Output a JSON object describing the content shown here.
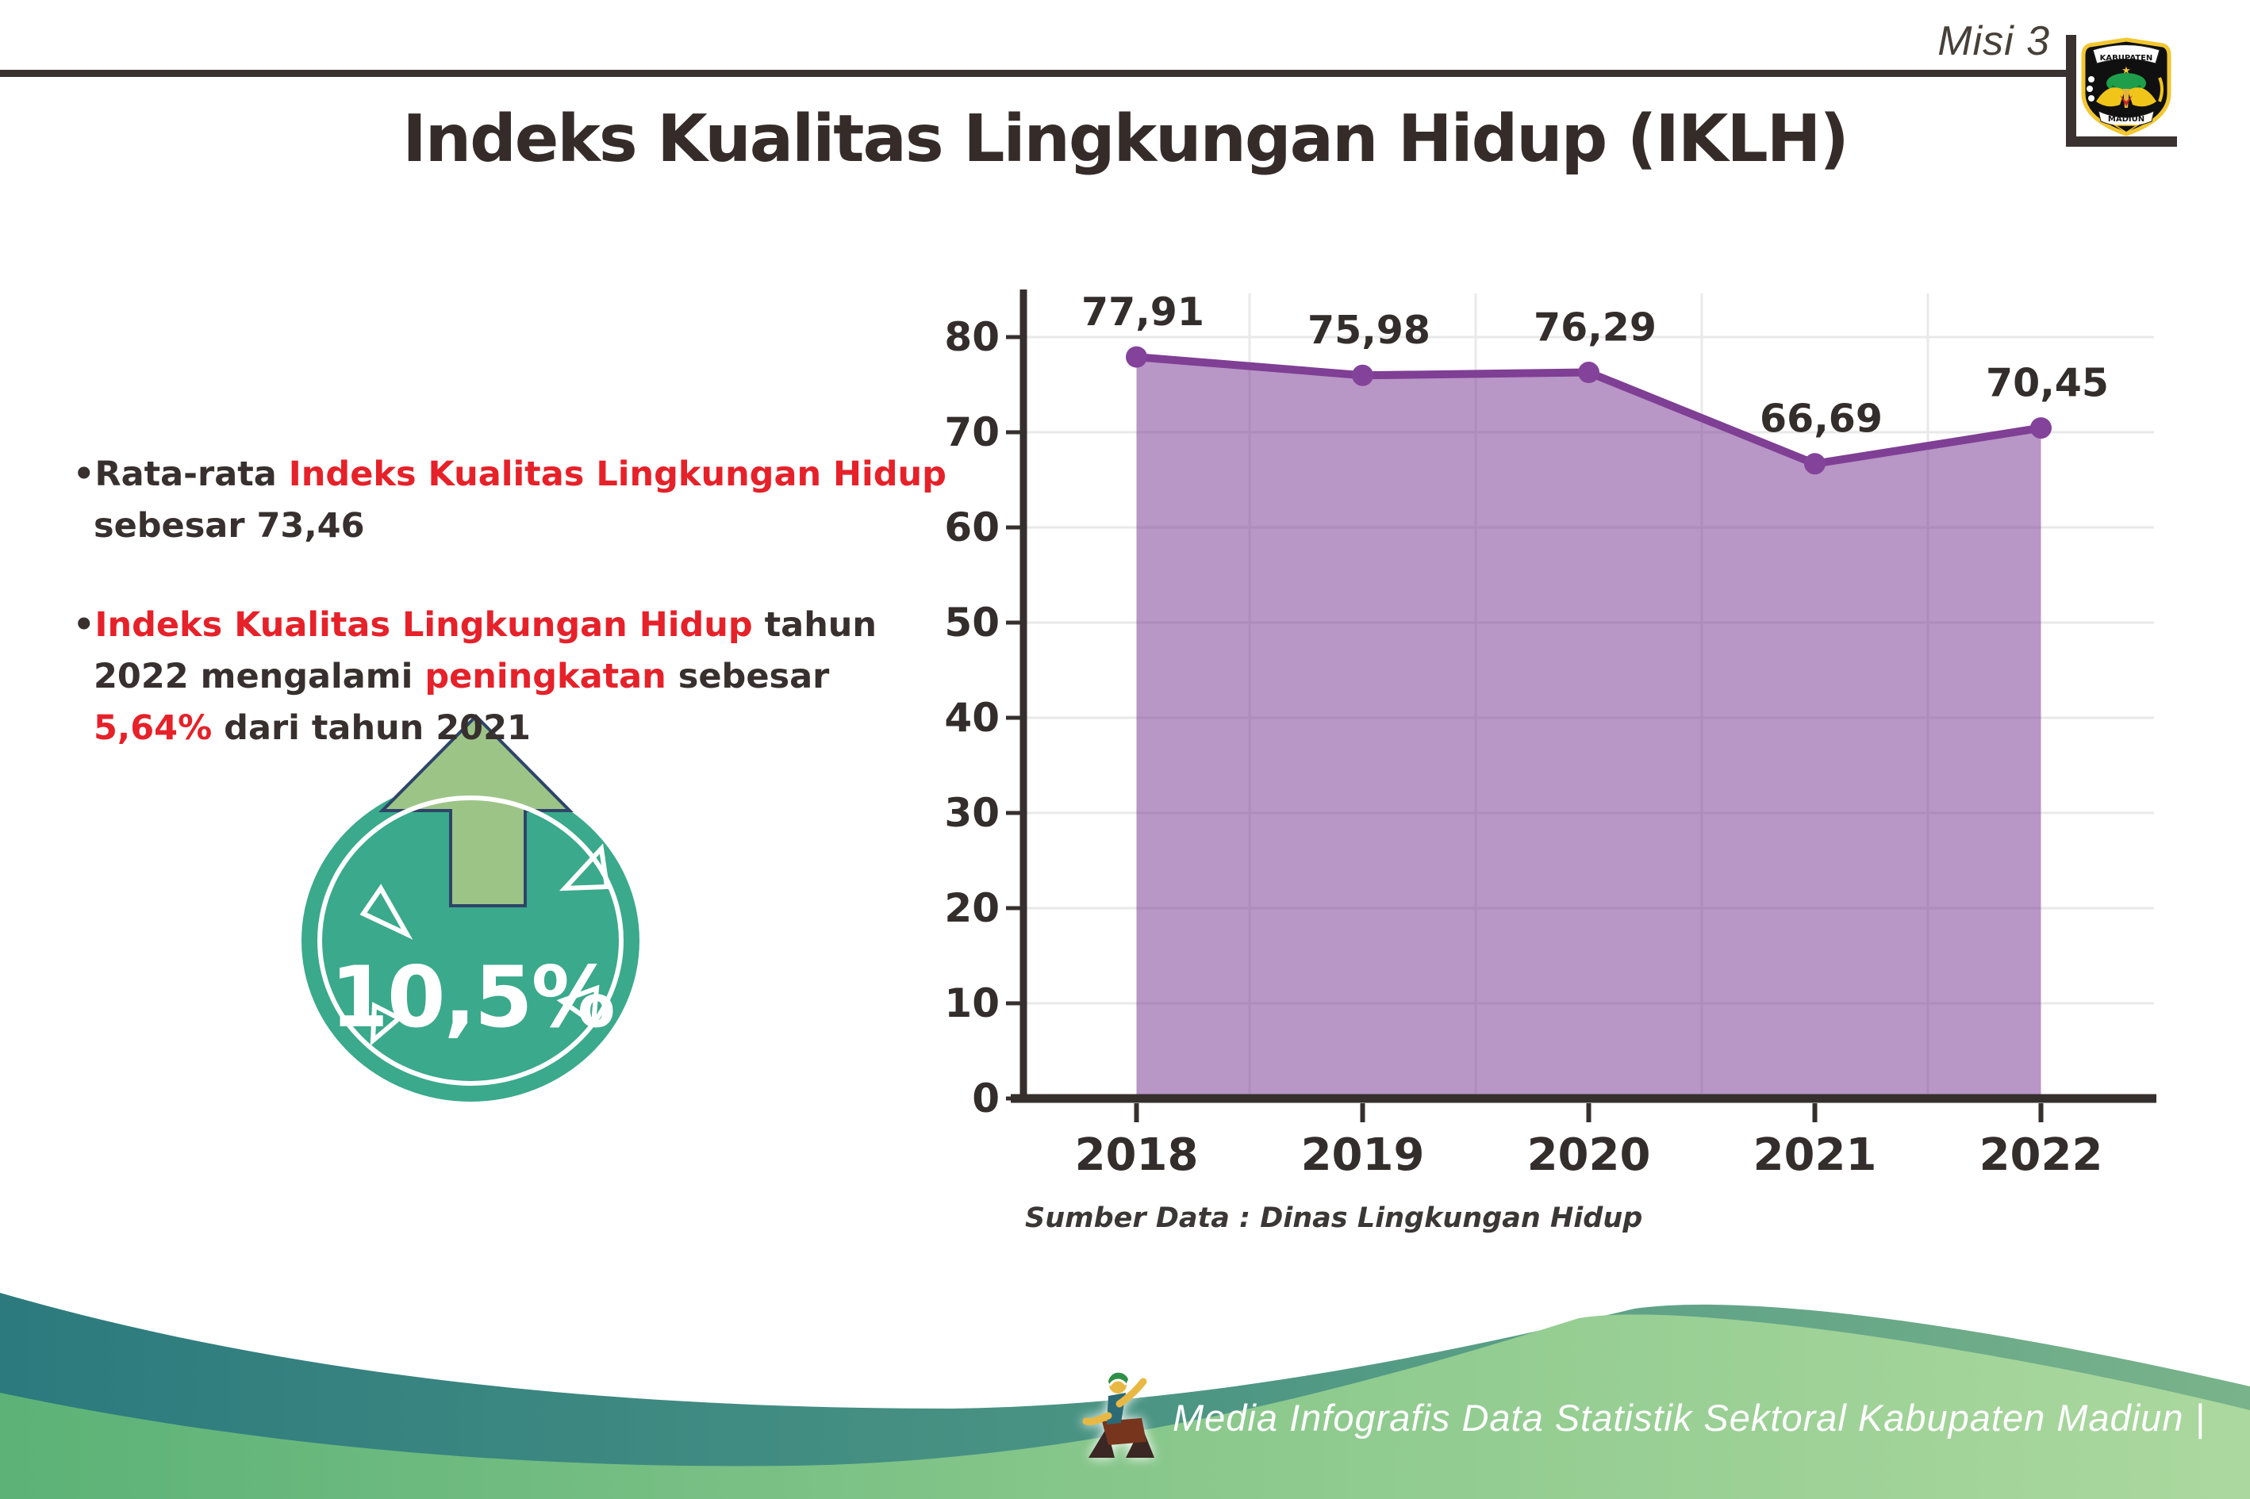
{
  "header": {
    "misi_label": "Misi 3",
    "title": "Indeks Kualitas Lingkungan Hidup (IKLH)",
    "logo_top": "KABUPATEN",
    "logo_bottom": "MADIUN"
  },
  "bullets": [
    {
      "segments": [
        {
          "t": "•",
          "c": "dark"
        },
        {
          "t": "Rata-rata ",
          "c": "dark"
        },
        {
          "t": "Indeks Kualitas Lingkungan Hidup",
          "c": "red"
        },
        {
          "t": " sebesar 73,46",
          "c": "dark"
        }
      ]
    },
    {
      "segments": [
        {
          "t": "•",
          "c": "dark"
        },
        {
          "t": "Indeks Kualitas Lingkungan Hidup",
          "c": "red"
        },
        {
          "t": " tahun 2022 mengalami ",
          "c": "dark"
        },
        {
          "t": "peningkatan",
          "c": "red"
        },
        {
          "t": " sebesar ",
          "c": "dark"
        },
        {
          "t": "5,64%",
          "c": "red"
        },
        {
          "t": " dari tahun 2021",
          "c": "dark"
        }
      ]
    }
  ],
  "badge": {
    "value": "10,5%",
    "circle_color": "#3aa98c",
    "arrow_color": "#9cc487",
    "arrow_outline": "#2e4468"
  },
  "chart_data": {
    "type": "area",
    "categories": [
      "2018",
      "2019",
      "2020",
      "2021",
      "2022"
    ],
    "values": [
      77.91,
      75.98,
      76.29,
      66.69,
      70.45
    ],
    "value_labels": [
      "77,91",
      "75,98",
      "76,29",
      "66,69",
      "70,45"
    ],
    "title": "",
    "xlabel": "",
    "ylabel": "",
    "ylim": [
      0,
      80
    ],
    "ytick_step": 10,
    "grid": true,
    "legend": "none",
    "line_color": "#7f3f94",
    "dot_color": "#84439a",
    "fill_color": "#7d3f98",
    "fill_opacity": 0.55,
    "axis_color": "#352f2d",
    "grid_color": "#e9e9e9",
    "label_color": "#332d2b",
    "source_note": "Sumber Data : Dinas Lingkungan Hidup"
  },
  "footer": {
    "credit": "Media Infografis Data Statistik Sektoral Kabupaten Madiun |"
  }
}
